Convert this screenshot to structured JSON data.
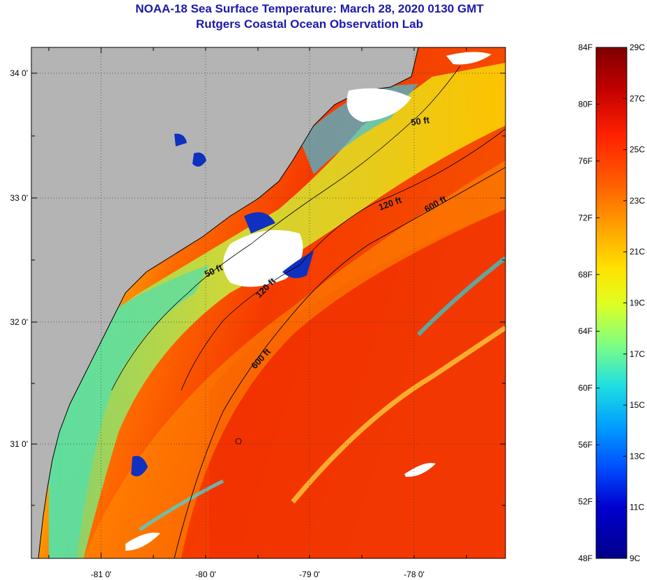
{
  "title": {
    "line1": "NOAA-18 Sea Surface Temperature:  March 28, 2020 0130 GMT",
    "line2": "Rutgers Coastal Ocean Observation Lab"
  },
  "axes": {
    "x_ticks": [
      "-81 0'",
      "-80 0'",
      "-79 0'",
      "-78 0'"
    ],
    "y_ticks": [
      "34 0'",
      "33 0'",
      "32 0'",
      "31 0'"
    ]
  },
  "contours": {
    "labels": [
      "50 ft",
      "120 ft",
      "600 ft",
      "50 ft",
      "120 ft",
      "600 ft"
    ]
  },
  "colorbar": {
    "fahrenheit": [
      "84F",
      "80F",
      "76F",
      "72F",
      "68F",
      "64F",
      "60F",
      "56F",
      "52F",
      "48F"
    ],
    "celsius": [
      "29C",
      "27C",
      "25C",
      "23C",
      "21C",
      "19C",
      "17C",
      "15C",
      "13C",
      "11C",
      "9C"
    ],
    "gradient": [
      "#800000",
      "#c00000",
      "#ff2000",
      "#ff6000",
      "#ffa000",
      "#ffe000",
      "#e0ff20",
      "#80ff80",
      "#20e0e0",
      "#00a0ff",
      "#0050ff",
      "#0000d0",
      "#00008a"
    ]
  },
  "colors": {
    "land": "#b4b4b4",
    "cloud": "#ffffff",
    "title": "#1a1aa8"
  }
}
